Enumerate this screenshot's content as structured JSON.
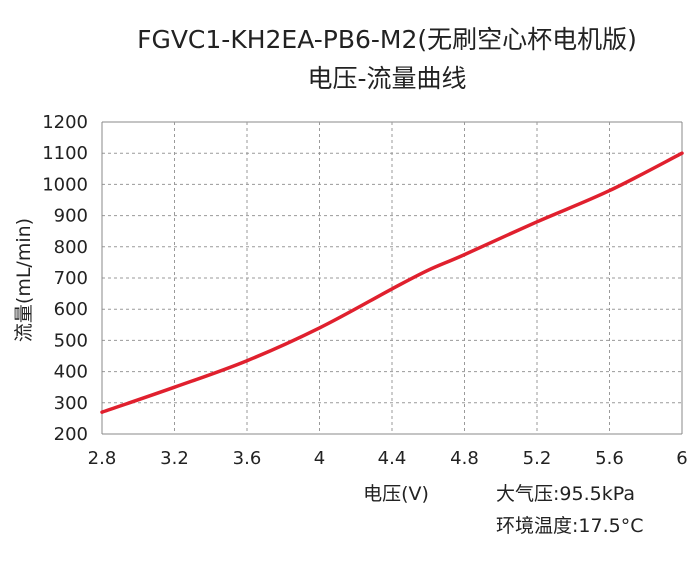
{
  "chart_data": {
    "type": "line",
    "title": "FGVC1-KH2EA-PB6-M2(无刷空心杯电机版)",
    "subtitle": "电压-流量曲线",
    "xlabel": "电压(V)",
    "ylabel": "流量(mL/min)",
    "xlim": [
      2.8,
      6
    ],
    "ylim": [
      200,
      1200
    ],
    "x_ticks": [
      "2.8",
      "3.2",
      "3.6",
      "4",
      "4.4",
      "4.8",
      "5.2",
      "5.6",
      "6"
    ],
    "y_ticks": [
      "200",
      "300",
      "400",
      "500",
      "600",
      "700",
      "800",
      "900",
      "1000",
      "1100",
      "1200"
    ],
    "grid": "dashed",
    "series": [
      {
        "color": "#e0202e",
        "x": [
          2.8,
          3.2,
          3.6,
          4.0,
          4.4,
          4.6,
          4.8,
          5.2,
          5.6,
          6.0
        ],
        "y": [
          270,
          350,
          435,
          540,
          665,
          725,
          775,
          880,
          980,
          1100
        ]
      }
    ],
    "annotations": [
      "大气压:95.5kPa",
      "环境温度:17.5°C"
    ]
  }
}
